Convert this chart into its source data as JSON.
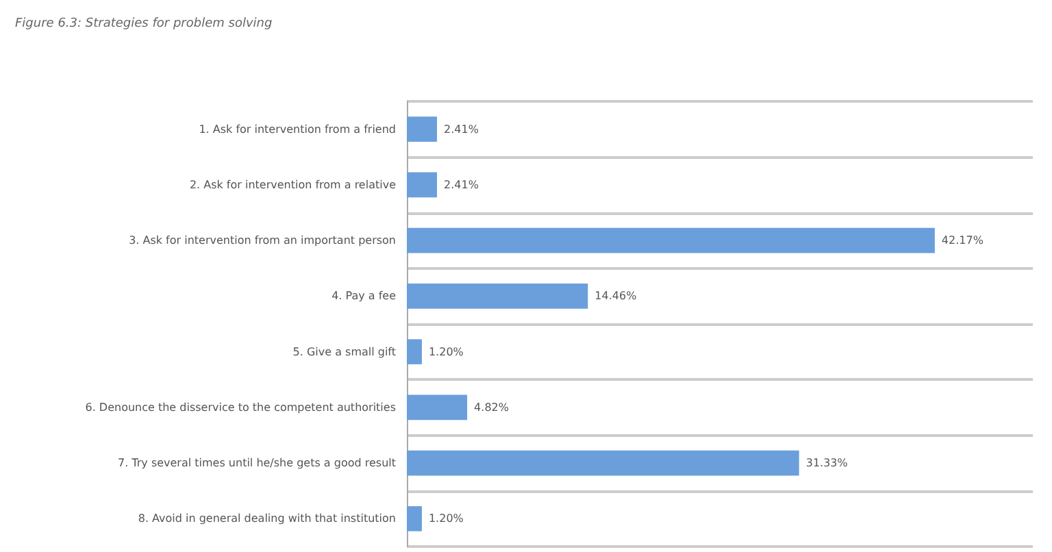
{
  "chart_data": {
    "type": "bar",
    "orientation": "horizontal",
    "title": "Figure 6.3: Strategies for problem solving",
    "categories": [
      "1. Ask for intervention from a friend",
      "2. Ask for intervention from a relative",
      "3. Ask for intervention from an important person",
      "4. Pay a fee",
      "5. Give a small gift",
      "6. Denounce the disservice to the competent authorities",
      "7. Try several times until he/she gets a good result",
      "8. Avoid in general dealing with that institution"
    ],
    "values": [
      2.41,
      2.41,
      42.17,
      14.46,
      1.2,
      4.82,
      31.33,
      1.2
    ],
    "value_labels": [
      "2.41%",
      "2.41%",
      "42.17%",
      "14.46%",
      "1.20%",
      "4.82%",
      "31.33%",
      "1.20%"
    ],
    "color": "#6a9fdb",
    "grid": "y",
    "tick_labels": "y"
  }
}
